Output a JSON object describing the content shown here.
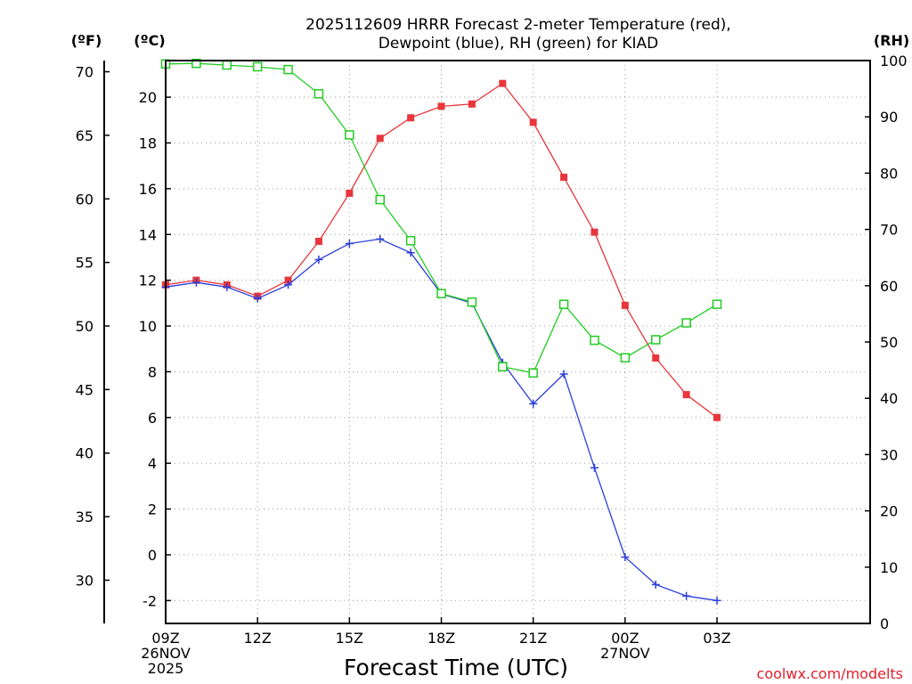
{
  "chart_data": {
    "type": "line",
    "title_lines": [
      "2025112609 HRRR Forecast 2-meter Temperature (red),",
      "Dewpoint (blue), RH (green) for KIAD"
    ],
    "xlabel": "Forecast Time (UTC)",
    "credit": "coolwx.com/modelts",
    "units": {
      "fahrenheit": "(ºF)",
      "celsius": "(ºC)",
      "rh": "(RH)"
    },
    "x_hours": [
      0,
      23
    ],
    "x_ticks": [
      {
        "hour": 0,
        "lines": [
          "09Z",
          "26NOV",
          "2025"
        ]
      },
      {
        "hour": 3,
        "lines": [
          "12Z"
        ]
      },
      {
        "hour": 6,
        "lines": [
          "15Z"
        ]
      },
      {
        "hour": 9,
        "lines": [
          "18Z"
        ]
      },
      {
        "hour": 12,
        "lines": [
          "21Z"
        ]
      },
      {
        "hour": 15,
        "lines": [
          "00Z",
          "27NOV"
        ]
      },
      {
        "hour": 18,
        "lines": [
          "03Z"
        ]
      }
    ],
    "celsius_axis": {
      "range": [
        -3,
        21.6
      ],
      "ticks": [
        "-2",
        "0",
        "2",
        "4",
        "6",
        "8",
        "10",
        "12",
        "14",
        "16",
        "18",
        "20"
      ]
    },
    "fahrenheit_axis": {
      "ticks": [
        "30",
        "35",
        "40",
        "45",
        "50",
        "55",
        "60",
        "65",
        "70"
      ]
    },
    "rh_axis": {
      "range": [
        0,
        100
      ],
      "ticks": [
        "0",
        "10",
        "20",
        "30",
        "40",
        "50",
        "60",
        "70",
        "80",
        "90",
        "100"
      ]
    },
    "series": [
      {
        "name": "2-meter Temperature",
        "axis": "celsius",
        "color": "#e8363c",
        "marker": "filled-square",
        "x": [
          0,
          1,
          2,
          3,
          4,
          5,
          6,
          7,
          8,
          9,
          10,
          11,
          12,
          13,
          14,
          15,
          16,
          17,
          18
        ],
        "values": [
          11.8,
          12.0,
          11.8,
          11.3,
          12.0,
          13.7,
          15.8,
          18.2,
          19.1,
          19.6,
          19.7,
          20.6,
          18.9,
          16.5,
          14.1,
          10.9,
          8.6,
          7.0,
          6.0
        ]
      },
      {
        "name": "Dewpoint",
        "axis": "celsius",
        "color": "#2b3fd8",
        "marker": "plus",
        "x": [
          0,
          1,
          2,
          3,
          4,
          5,
          6,
          7,
          8,
          9,
          10,
          11,
          12,
          13,
          14,
          15,
          16,
          17,
          18
        ],
        "values": [
          11.7,
          11.9,
          11.7,
          11.2,
          11.8,
          12.9,
          13.6,
          13.8,
          13.2,
          11.4,
          11.0,
          8.4,
          6.6,
          7.9,
          3.8,
          -0.1,
          -1.3,
          -1.8,
          -2.0
        ]
      },
      {
        "name": "RH",
        "axis": "rh",
        "color": "#22cc22",
        "marker": "open-square",
        "x": [
          0,
          1,
          2,
          3,
          4,
          5,
          6,
          7,
          8,
          9,
          10,
          11,
          12,
          13,
          14,
          15,
          16,
          17,
          18
        ],
        "values": [
          99.4,
          99.5,
          99.2,
          98.9,
          98.4,
          94.1,
          86.8,
          75.3,
          68.0,
          58.6,
          57.1,
          45.6,
          44.5,
          56.7,
          50.3,
          47.2,
          50.4,
          53.4,
          56.7
        ]
      }
    ]
  }
}
